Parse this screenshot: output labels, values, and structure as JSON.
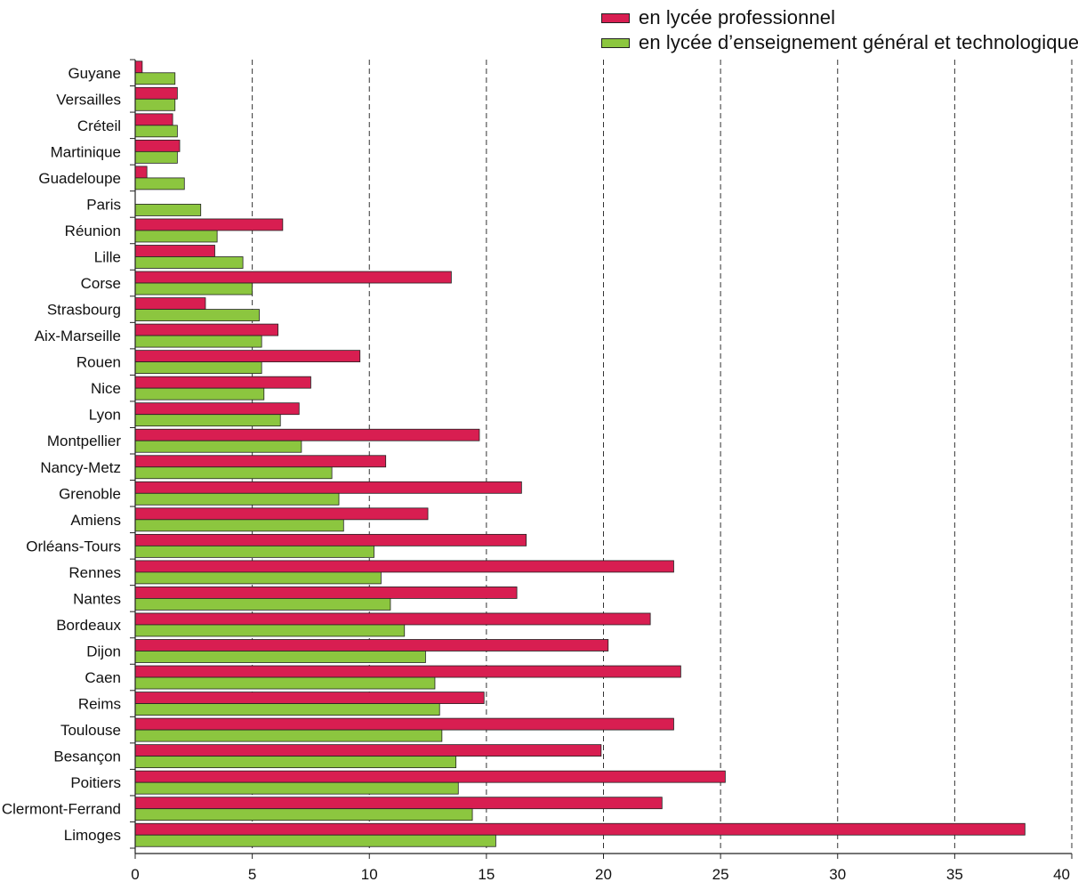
{
  "chart_data": {
    "type": "bar",
    "orientation": "horizontal",
    "categories": [
      "Guyane",
      "Versailles",
      "Créteil",
      "Martinique",
      "Guadeloupe",
      "Paris",
      "Réunion",
      "Lille",
      "Corse",
      "Strasbourg",
      "Aix-Marseille",
      "Rouen",
      "Nice",
      "Lyon",
      "Montpellier",
      "Nancy-Metz",
      "Grenoble",
      "Amiens",
      "Orléans-Tours",
      "Rennes",
      "Nantes",
      "Bordeaux",
      "Dijon",
      "Caen",
      "Reims",
      "Toulouse",
      "Besançon",
      "Poitiers",
      "Clermont-Ferrand",
      "Limoges"
    ],
    "series": [
      {
        "name": "en lycée professionnel",
        "color": "#d81e51",
        "values": [
          0.3,
          1.8,
          1.6,
          1.9,
          0.5,
          0,
          6.3,
          3.4,
          13.5,
          3.0,
          6.1,
          9.6,
          7.5,
          7.0,
          14.7,
          10.7,
          16.5,
          12.5,
          16.7,
          23.0,
          16.3,
          22.0,
          20.2,
          23.3,
          14.9,
          23.0,
          19.9,
          25.2,
          22.5,
          38.0
        ]
      },
      {
        "name": "en lycée d’enseignement général et technologique",
        "color": "#8cc63f",
        "values": [
          1.7,
          1.7,
          1.8,
          1.8,
          2.1,
          2.8,
          3.5,
          4.6,
          5.0,
          5.3,
          5.4,
          5.4,
          5.5,
          6.2,
          7.1,
          8.4,
          8.7,
          8.9,
          10.2,
          10.5,
          10.9,
          11.5,
          12.4,
          12.8,
          13.0,
          13.1,
          13.7,
          13.8,
          14.4,
          15.4
        ]
      }
    ],
    "x_ticks": [
      "0",
      "5",
      "10",
      "15",
      "20",
      "25",
      "30",
      "35",
      "40"
    ],
    "xlim": [
      0,
      40
    ],
    "grid": "vertical dashed",
    "legend_position": "top-right",
    "title": "",
    "xlabel": "",
    "ylabel": ""
  }
}
